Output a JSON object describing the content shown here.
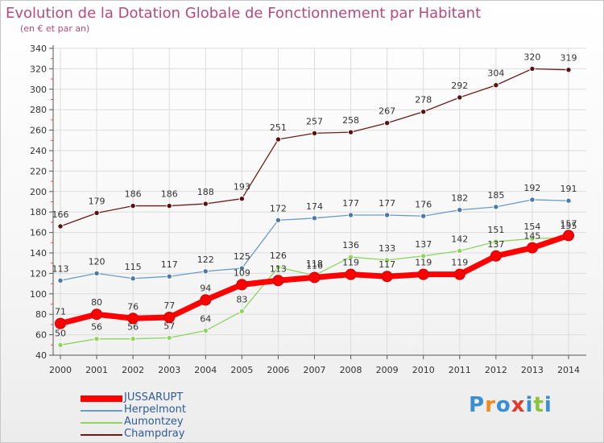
{
  "chart_data": {
    "type": "line",
    "title": "Evolution de la Dotation Globale de Fonctionnement par Habitant",
    "subtitle": "(en € et par an)",
    "xlabel": "",
    "ylabel": "",
    "categories": [
      "2000",
      "2001",
      "2002",
      "2003",
      "2004",
      "2005",
      "2006",
      "2007",
      "2008",
      "2009",
      "2010",
      "2011",
      "2012",
      "2013",
      "2014"
    ],
    "ylim": [
      40,
      340
    ],
    "yticks": [
      "40",
      "60",
      "80",
      "100",
      "120",
      "140",
      "160",
      "180",
      "200",
      "220",
      "240",
      "260",
      "280",
      "300",
      "320",
      "340"
    ],
    "grid": true,
    "legend_position": "bottom-left",
    "series": [
      {
        "name": "JUSSARUPT",
        "color": "#ff0000",
        "values": [
          71,
          80,
          76,
          77,
          94,
          109,
          113,
          116,
          119,
          117,
          119,
          119,
          137,
          145,
          157
        ]
      },
      {
        "name": "Herpelmont",
        "color": "#6a9cc8",
        "values": [
          113,
          120,
          115,
          117,
          122,
          125,
          172,
          174,
          177,
          177,
          176,
          182,
          185,
          192,
          191
        ]
      },
      {
        "name": "Aumontzey",
        "color": "#8fd45f",
        "values": [
          50,
          56,
          56,
          57,
          64,
          83,
          126,
          118,
          136,
          133,
          137,
          142,
          151,
          154,
          155
        ]
      },
      {
        "name": "Champdray",
        "color": "#6e1a1a",
        "values": [
          166,
          179,
          186,
          186,
          188,
          193,
          251,
          257,
          258,
          267,
          278,
          292,
          304,
          320,
          319
        ]
      }
    ]
  },
  "logo": {
    "letters": [
      "P",
      "r",
      "o",
      "x",
      "i",
      "t",
      "i"
    ],
    "colors": [
      "#3a8fd0",
      "#f08c1e",
      "#3a8fd0",
      "#e23a2b",
      "#3a8fd0",
      "#8bc43f",
      "#3a8fd0"
    ]
  }
}
